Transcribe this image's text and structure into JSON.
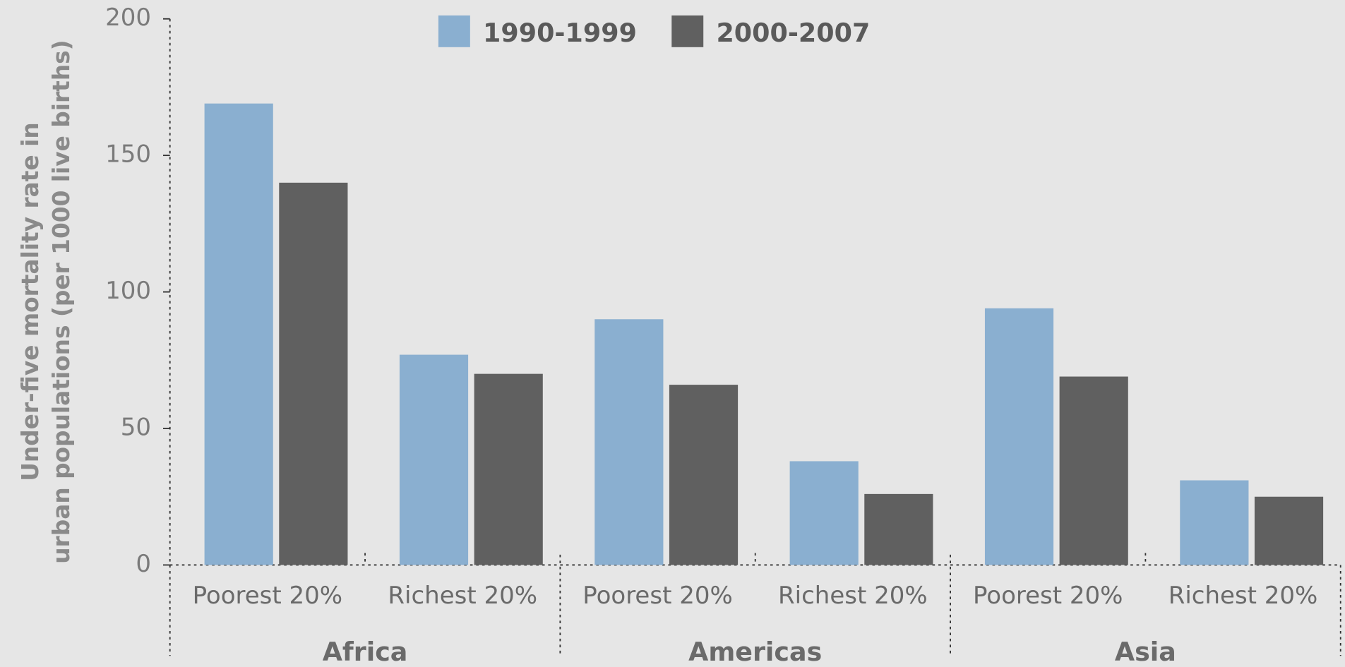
{
  "chart_data": {
    "type": "bar",
    "ylabel": [
      "Under-five mortality rate in",
      "urban populations (per 1000 live births)"
    ],
    "categories": [
      "Poorest 20%",
      "Richest 20%",
      "Poorest 20%",
      "Richest 20%",
      "Poorest 20%",
      "Richest 20%"
    ],
    "groups": [
      "Africa",
      "Americas",
      "Asia"
    ],
    "series": [
      {
        "name": "1990-1999",
        "color": "#8aafd0",
        "values": [
          169,
          77,
          90,
          38,
          94,
          31
        ]
      },
      {
        "name": "2000-2007",
        "color": "#606060",
        "values": [
          140,
          70,
          66,
          26,
          69,
          25
        ]
      }
    ],
    "ylim": [
      0,
      200
    ],
    "yticks": [
      0,
      50,
      100,
      150,
      200
    ]
  }
}
